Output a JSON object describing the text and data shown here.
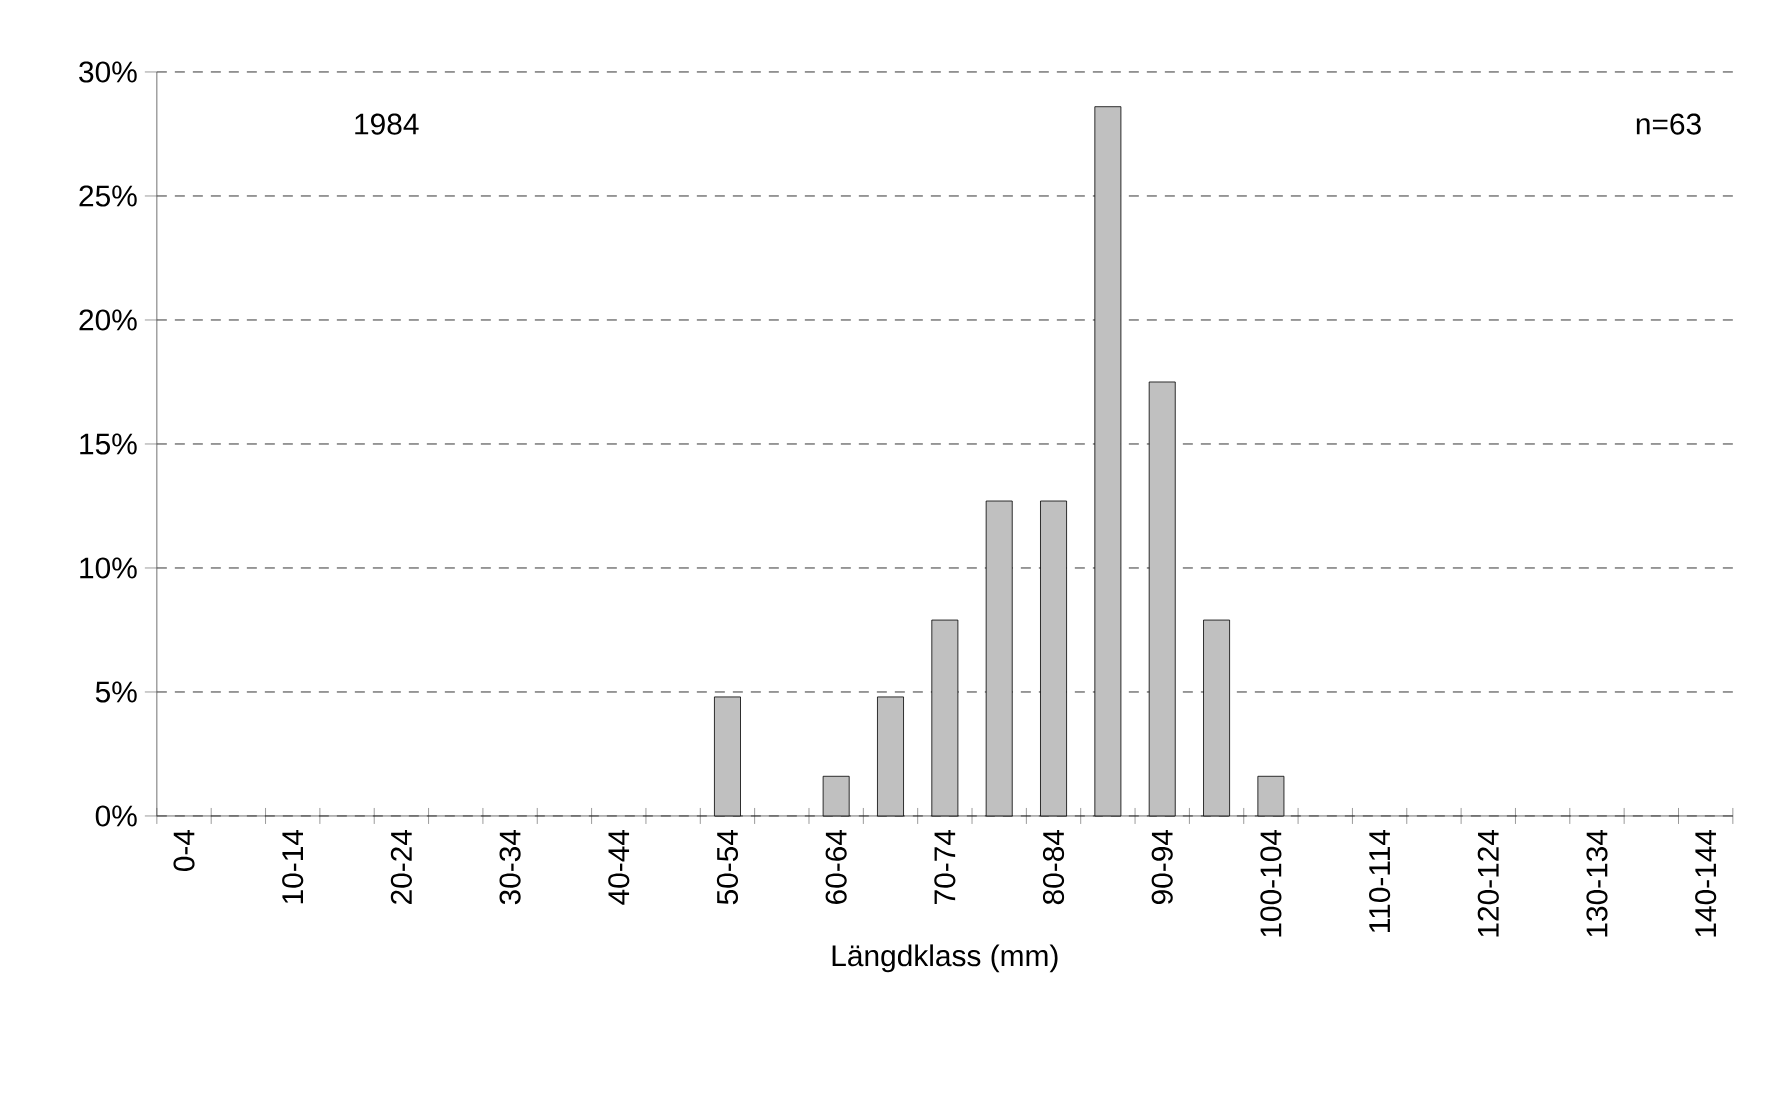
{
  "chart_data": {
    "type": "bar",
    "xlabel": "Längdklass (mm)",
    "categories": [
      "0-4",
      null,
      "10-14",
      null,
      "20-24",
      null,
      "30-34",
      null,
      "40-44",
      null,
      "50-54",
      null,
      "60-64",
      null,
      "70-74",
      null,
      "80-84",
      null,
      "90-94",
      null,
      "100-104",
      null,
      "110-114",
      null,
      "120-124",
      null,
      "130-134",
      null,
      "140-144"
    ],
    "values": [
      0,
      0,
      0,
      0,
      0,
      0,
      0,
      0,
      0,
      0,
      4.8,
      0,
      1.6,
      4.8,
      7.9,
      12.7,
      12.7,
      28.6,
      17.5,
      7.9,
      1.6,
      0,
      0,
      0,
      0,
      0,
      0,
      0,
      0
    ],
    "color": "#c0c0c0",
    "ylim": [
      0,
      30
    ],
    "yticks": [
      {
        "value": 0,
        "label": "0%"
      },
      {
        "value": 5,
        "label": "5%"
      },
      {
        "value": 10,
        "label": "10%"
      },
      {
        "value": 15,
        "label": "15%"
      },
      {
        "value": 20,
        "label": "20%"
      },
      {
        "value": 25,
        "label": "25%"
      },
      {
        "value": 30,
        "label": "30%"
      }
    ],
    "grid": "y",
    "annotations": [
      "1984",
      "n=63"
    ]
  }
}
